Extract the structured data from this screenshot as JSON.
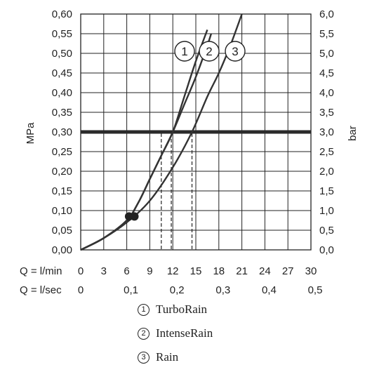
{
  "chart_data": {
    "type": "line",
    "ylabel_left": "MPa",
    "ylabel_right": "bar",
    "x_row_labels": [
      "Q = l/min",
      "Q = l/sec"
    ],
    "x_ticks_lmin": [
      "0",
      "3",
      "6",
      "9",
      "12",
      "15",
      "18",
      "21",
      "24",
      "27",
      "30"
    ],
    "x_ticks_lsec": [
      "0",
      "0,1",
      "0,2",
      "0,3",
      "0,4",
      "0,5"
    ],
    "y_ticks_left": [
      "0,00",
      "0,05",
      "0,10",
      "0,15",
      "0,20",
      "0,25",
      "0,30",
      "0,35",
      "0,40",
      "0,45",
      "0,50",
      "0,55",
      "0,60"
    ],
    "y_ticks_right": [
      "0,0",
      "0,5",
      "1,0",
      "1,5",
      "2,0",
      "2,5",
      "3,0",
      "3,5",
      "4,0",
      "4,5",
      "5,0",
      "5,5",
      "6,0"
    ],
    "xlim": [
      0,
      30
    ],
    "ylim": [
      0,
      0.6
    ],
    "grid": true,
    "reference_line_y": 0.3,
    "series": [
      {
        "name": "TurboRain",
        "label_number": "1",
        "x": [
          0,
          3,
          6,
          7.5,
          9,
          10.5,
          12,
          13.5,
          15,
          16.5
        ],
        "y": [
          0,
          0.03,
          0.075,
          0.12,
          0.18,
          0.24,
          0.3,
          0.39,
          0.48,
          0.56
        ]
      },
      {
        "name": "IntenseRain",
        "label_number": "2",
        "x": [
          0,
          3,
          6,
          7.5,
          9,
          10.5,
          12,
          13.5,
          15,
          16.5,
          17
        ],
        "y": [
          0,
          0.03,
          0.075,
          0.12,
          0.18,
          0.24,
          0.3,
          0.37,
          0.44,
          0.52,
          0.55
        ]
      },
      {
        "name": "Rain",
        "label_number": "3",
        "x": [
          0,
          3,
          6,
          9,
          12,
          14.5,
          16.5,
          18,
          19.5,
          21
        ],
        "y": [
          0,
          0.03,
          0.07,
          0.125,
          0.21,
          0.3,
          0.39,
          0.45,
          0.52,
          0.6
        ]
      }
    ],
    "markers": [
      {
        "x": 6.3,
        "y": 0.085
      },
      {
        "x": 7,
        "y": 0.085
      }
    ],
    "drop_lines_x": [
      10.5,
      11.8,
      14.5
    ]
  },
  "legend": [
    {
      "num": "1",
      "label": "TurboRain"
    },
    {
      "num": "2",
      "label": "IntenseRain"
    },
    {
      "num": "3",
      "label": "Rain"
    }
  ]
}
